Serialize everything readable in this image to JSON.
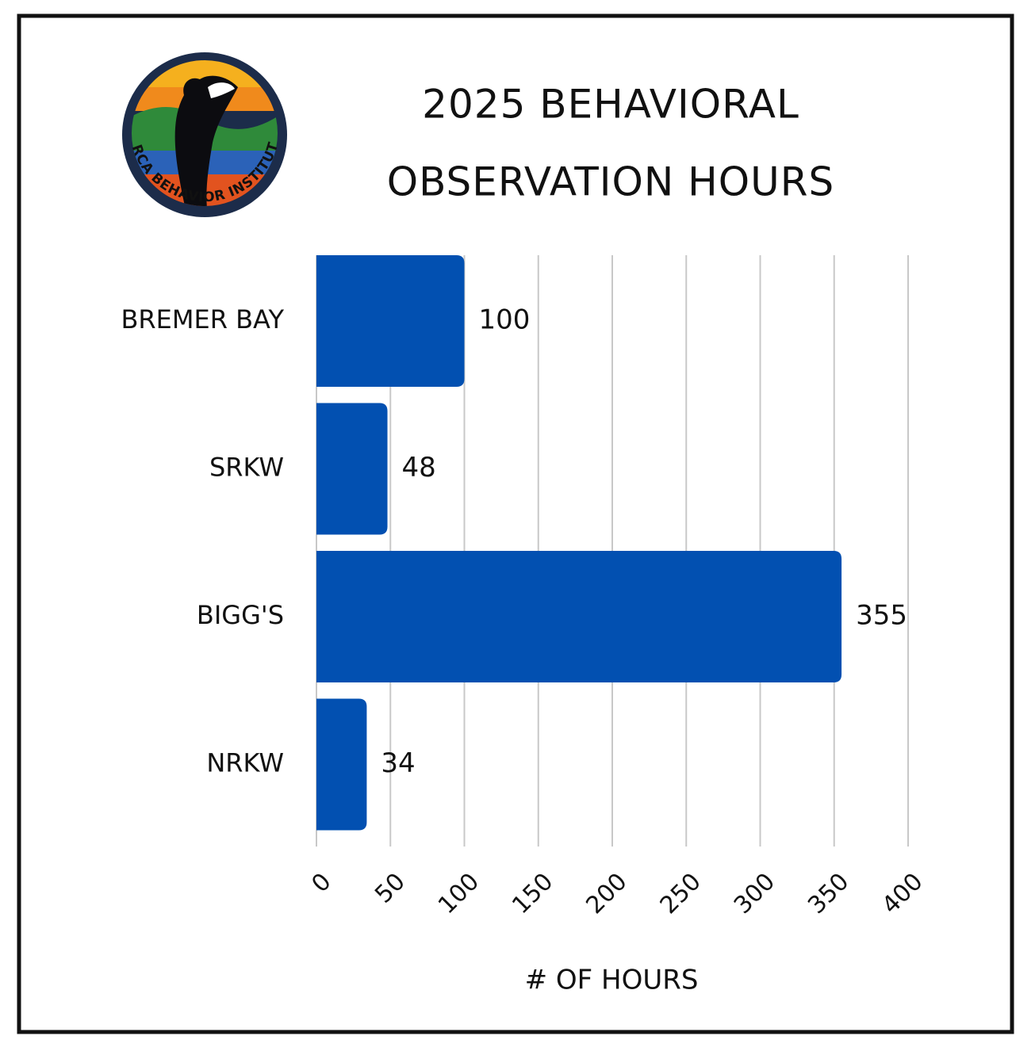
{
  "logo": {
    "text": "ORCA BEHAVIOR INSTITUTE"
  },
  "chart_data": {
    "type": "bar",
    "orientation": "horizontal",
    "title": [
      "2025 BEHAVIORAL",
      "OBSERVATION HOURS"
    ],
    "x_label": "# OF HOURS",
    "categories": [
      "BREMER BAY",
      "SRKW",
      "BIGG'S",
      "NRKW"
    ],
    "values": [
      100,
      48,
      355,
      34
    ],
    "color": "#0250b1",
    "xlim": [
      0,
      400
    ],
    "xticks": [
      0,
      50,
      100,
      150,
      200,
      250,
      300,
      350,
      400
    ],
    "grid": true
  }
}
